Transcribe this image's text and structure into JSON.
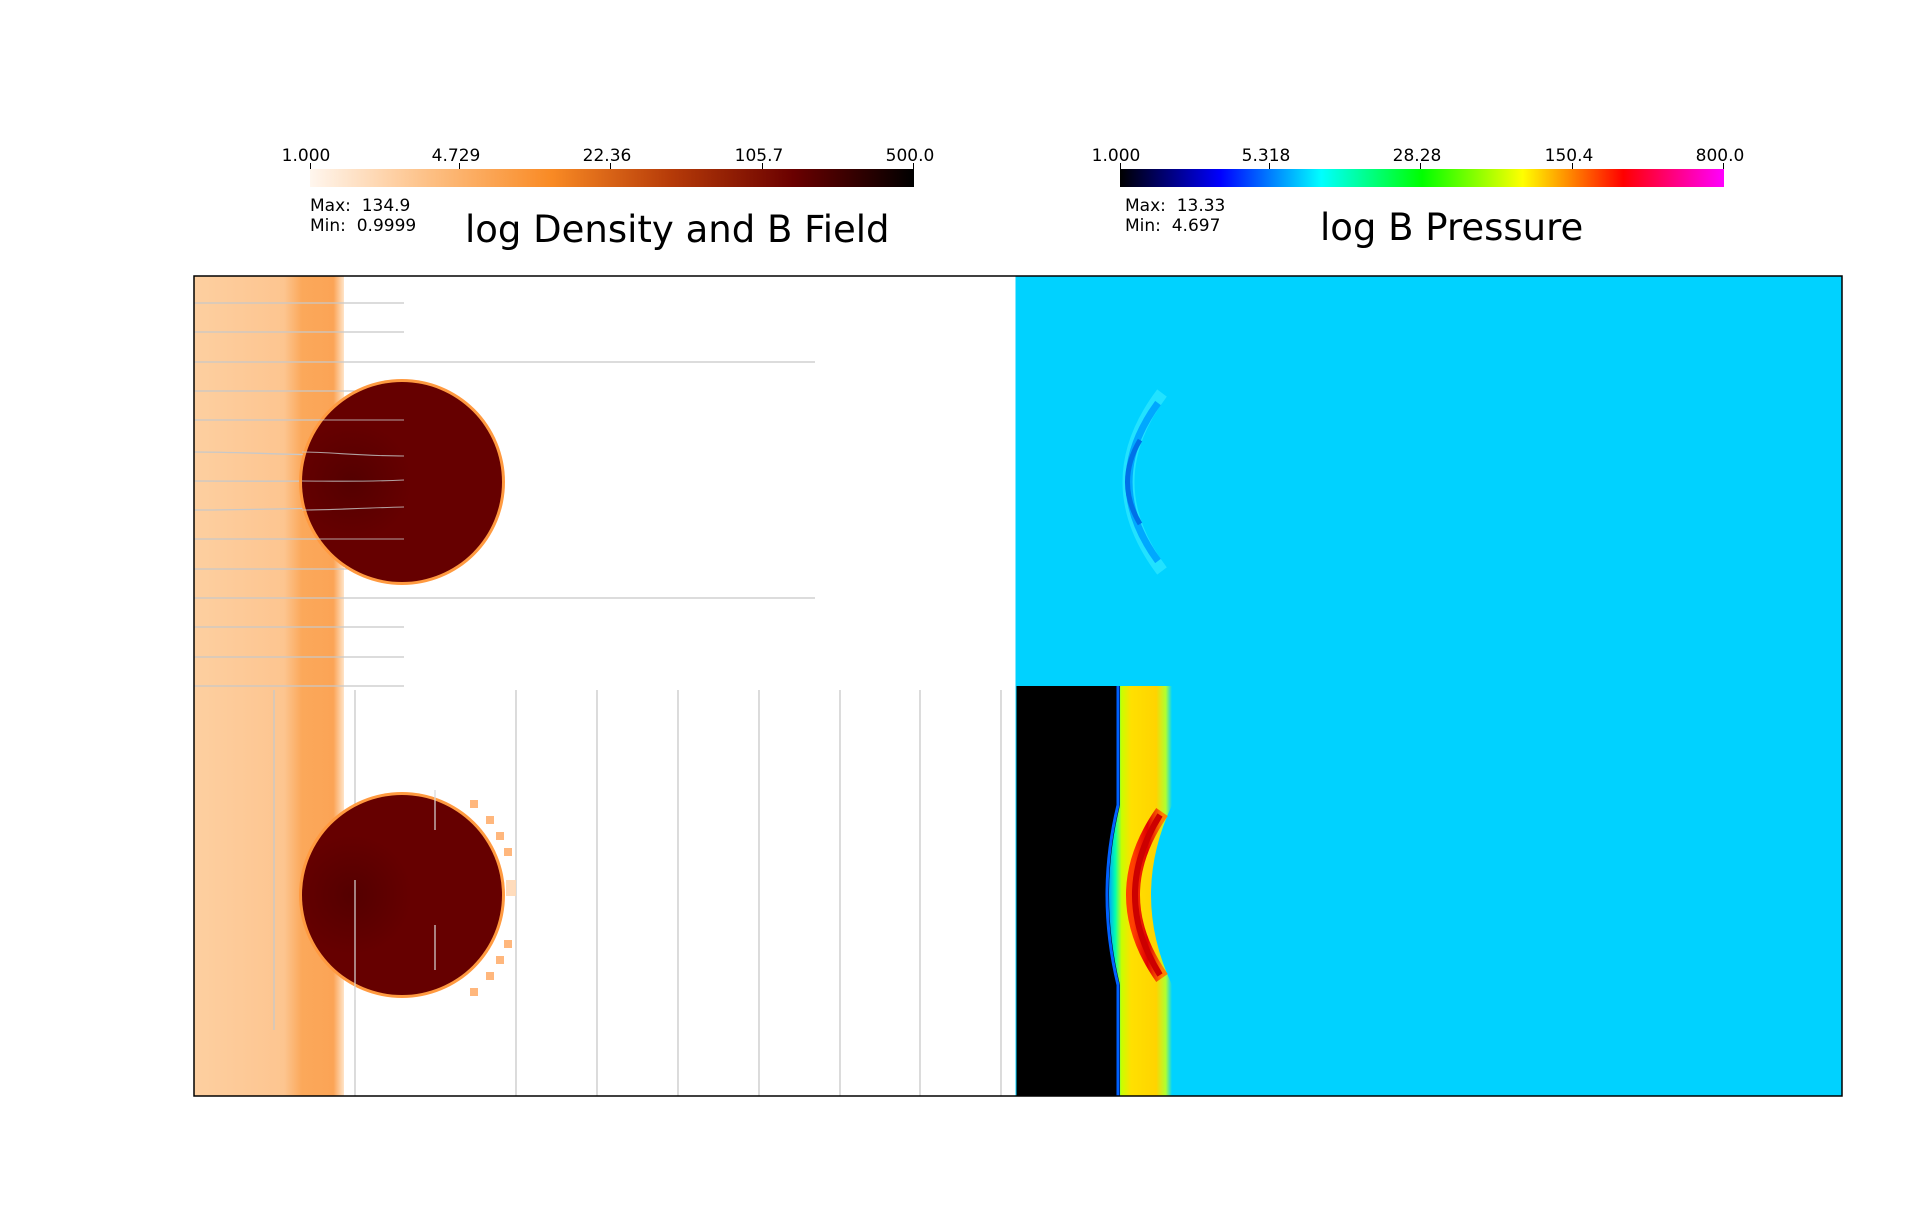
{
  "left_panel": {
    "title": "log Density and B Field",
    "colorbar": {
      "ticks": [
        "1.000",
        "4.729",
        "22.36",
        "105.7",
        "500.0"
      ],
      "colors": [
        "#fff6ee",
        "#fdbf83",
        "#f98a24",
        "#b53a08",
        "#6a0000",
        "#000000"
      ]
    },
    "max_label": "Max:",
    "max_value": "134.9",
    "min_label": "Min:",
    "min_value": "0.9999",
    "background_color": "#ffffff",
    "blob_color": "#660000",
    "slab_color": "#fdcc98"
  },
  "right_panel": {
    "title": "log B Pressure",
    "colorbar": {
      "ticks": [
        "1.000",
        "5.318",
        "28.28",
        "150.4",
        "800.0"
      ],
      "colors": [
        "#000000",
        "#0000ff",
        "#00ffff",
        "#00ff00",
        "#ffff00",
        "#ff0000",
        "#ff00ff"
      ]
    },
    "max_label": "Max:",
    "max_value": "13.33",
    "min_label": "Min:",
    "min_value": "4.697",
    "background_color": "#00d2ff"
  }
}
